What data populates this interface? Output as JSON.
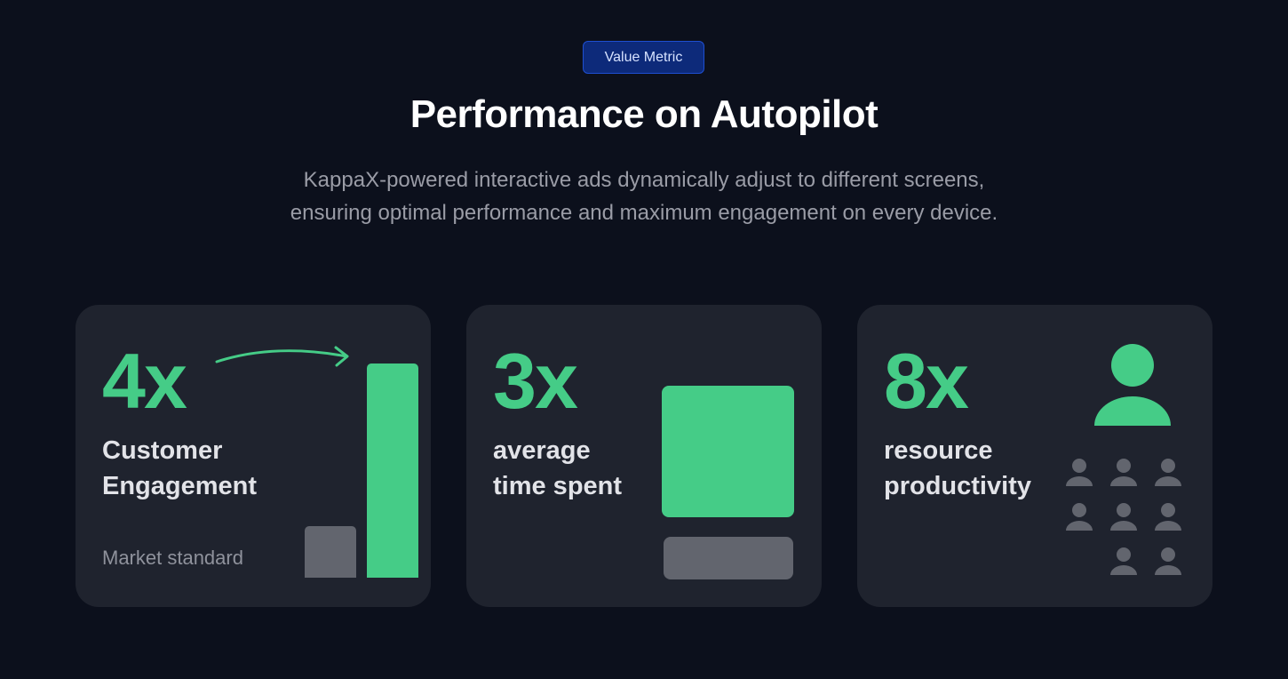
{
  "header": {
    "badge": "Value Metric",
    "title": "Performance on Autopilot",
    "subtitle_line1": "KappaX-powered interactive ads dynamically adjust to different screens,",
    "subtitle_line2": "ensuring optimal performance and maximum engagement on every device."
  },
  "cards": [
    {
      "metric": "4x",
      "label_line1": "Customer",
      "label_line2": "Engagement",
      "caption": "Market standard",
      "illustration": "bar-comparison-with-arrow"
    },
    {
      "metric": "3x",
      "label_line1": "average",
      "label_line2": "time spent",
      "illustration": "block-comparison"
    },
    {
      "metric": "8x",
      "label_line1": "resource",
      "label_line2": "productivity",
      "illustration": "person-icon-vs-people-grid"
    }
  ],
  "colors": {
    "background": "#0c101c",
    "card": "#1f232e",
    "accent_green": "#45cc87",
    "muted_gray": "#62656e",
    "badge_bg": "#0d2a7a"
  }
}
